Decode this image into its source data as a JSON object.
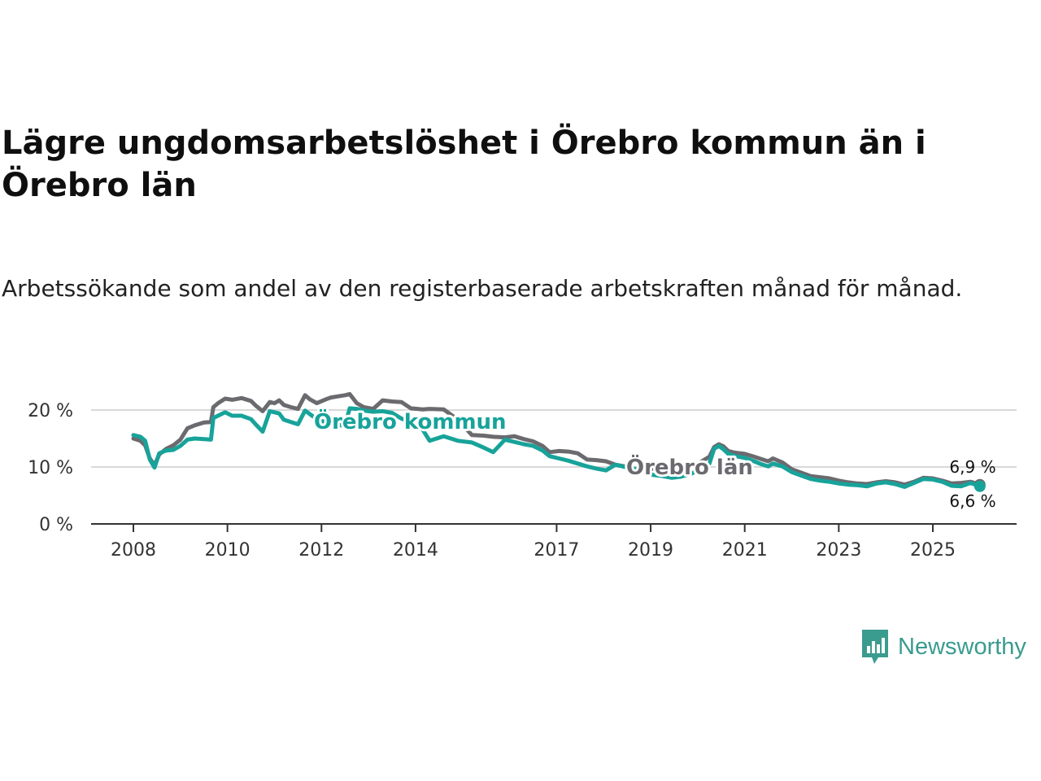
{
  "title": "Lägre ungdomsarbetslöshet i Örebro kommun än i Örebro län",
  "subtitle": "Arbetssökande som andel av den registerbaserade arbetskraften månad för månad.",
  "brand": {
    "name": "Newsworthy",
    "icon": "newsworthy-logo-icon",
    "color": "#3a9b8f"
  },
  "chart_data": {
    "type": "line",
    "title": "Lägre ungdomsarbetslöshet i Örebro kommun än i Örebro län",
    "xlabel": "",
    "ylabel": "",
    "xlim": [
      2008.0,
      2026.8
    ],
    "ylim": [
      0,
      20
    ],
    "grid": true,
    "y_ticks": [
      {
        "value": 0,
        "label": "0 %"
      },
      {
        "value": 10,
        "label": "10 %"
      },
      {
        "value": 20,
        "label": "20 %"
      }
    ],
    "x_ticks": [
      {
        "value": 2008,
        "label": "2008"
      },
      {
        "value": 2010,
        "label": "2010"
      },
      {
        "value": 2012,
        "label": "2012"
      },
      {
        "value": 2014,
        "label": "2014"
      },
      {
        "value": 2017,
        "label": "2017"
      },
      {
        "value": 2019,
        "label": "2019"
      },
      {
        "value": 2021,
        "label": "2021"
      },
      {
        "value": 2023,
        "label": "2023"
      },
      {
        "value": 2025,
        "label": "2025"
      }
    ],
    "series": [
      {
        "name": "Örebro län",
        "color": "#6b6a6f",
        "label": "Örebro län",
        "end_label": "6,9 %",
        "x": [
          2008.0,
          2008.15,
          2008.25,
          2008.35,
          2008.45,
          2008.55,
          2008.7,
          2008.85,
          2009.0,
          2009.15,
          2009.3,
          2009.5,
          2009.65,
          2009.7,
          2009.8,
          2009.95,
          2010.1,
          2010.3,
          2010.5,
          2010.6,
          2010.75,
          2010.9,
          2011.0,
          2011.1,
          2011.2,
          2011.35,
          2011.5,
          2011.65,
          2011.75,
          2011.9,
          2012.1,
          2012.2,
          2012.35,
          2012.5,
          2012.6,
          2012.75,
          2012.9,
          2013.1,
          2013.3,
          2013.5,
          2013.7,
          2013.9,
          2014.15,
          2014.3,
          2014.6,
          2014.9,
          2015.2,
          2015.45,
          2015.65,
          2015.9,
          2016.1,
          2016.3,
          2016.5,
          2016.7,
          2016.85,
          2017.05,
          2017.25,
          2017.45,
          2017.65,
          2017.85,
          2018.05,
          2018.25,
          2018.45,
          2018.65,
          2018.85,
          2019.05,
          2019.25,
          2019.45,
          2019.65,
          2019.85,
          2020.05,
          2020.25,
          2020.35,
          2020.45,
          2020.55,
          2020.65,
          2020.8,
          2021.0,
          2021.2,
          2021.35,
          2021.5,
          2021.6,
          2021.8,
          2022.0,
          2022.2,
          2022.4,
          2022.6,
          2022.8,
          2023.0,
          2023.2,
          2023.4,
          2023.6,
          2023.8,
          2024.0,
          2024.2,
          2024.4,
          2024.6,
          2024.8,
          2025.0,
          2025.2,
          2025.4,
          2025.6,
          2025.8,
          2026.0
        ],
        "values": [
          15.0,
          14.6,
          13.8,
          11.5,
          10.3,
          12.2,
          13.2,
          13.8,
          14.8,
          16.8,
          17.3,
          17.8,
          17.9,
          20.5,
          21.2,
          22.0,
          21.8,
          22.1,
          21.6,
          20.8,
          19.8,
          21.4,
          21.2,
          21.7,
          20.9,
          20.5,
          20.2,
          22.6,
          21.9,
          21.2,
          21.9,
          22.2,
          22.4,
          22.6,
          22.8,
          21.2,
          20.5,
          20.2,
          21.7,
          21.5,
          21.4,
          20.3,
          20.1,
          20.2,
          20.1,
          18.3,
          15.6,
          15.5,
          15.3,
          15.2,
          15.4,
          14.9,
          14.5,
          13.7,
          12.6,
          12.8,
          12.7,
          12.4,
          11.3,
          11.2,
          11.0,
          10.4,
          10.1,
          9.6,
          9.5,
          9.7,
          9.2,
          9.1,
          9.6,
          10.2,
          10.8,
          11.8,
          13.5,
          14.0,
          13.6,
          12.8,
          12.5,
          12.3,
          11.8,
          11.4,
          11.0,
          11.5,
          10.8,
          9.6,
          9.0,
          8.4,
          8.2,
          8.0,
          7.6,
          7.3,
          7.1,
          7.0,
          7.3,
          7.5,
          7.3,
          6.9,
          7.4,
          8.1,
          8.0,
          7.6,
          7.1,
          7.2,
          7.4,
          6.9
        ]
      },
      {
        "name": "Örebro kommun",
        "color": "#17a39a",
        "label": "Örebro kommun",
        "end_label": "6,6 %",
        "x": [
          2008.0,
          2008.15,
          2008.25,
          2008.35,
          2008.45,
          2008.55,
          2008.7,
          2008.85,
          2009.0,
          2009.15,
          2009.3,
          2009.5,
          2009.65,
          2009.7,
          2009.8,
          2009.95,
          2010.1,
          2010.3,
          2010.5,
          2010.6,
          2010.75,
          2010.9,
          2011.0,
          2011.1,
          2011.2,
          2011.35,
          2011.5,
          2011.65,
          2011.75,
          2011.9,
          2012.1,
          2012.2,
          2012.35,
          2012.5,
          2012.6,
          2012.75,
          2012.9,
          2013.1,
          2013.3,
          2013.5,
          2013.7,
          2013.9,
          2014.15,
          2014.3,
          2014.6,
          2014.9,
          2015.2,
          2015.45,
          2015.65,
          2015.9,
          2016.1,
          2016.3,
          2016.5,
          2016.7,
          2016.85,
          2017.05,
          2017.25,
          2017.45,
          2017.65,
          2017.85,
          2018.05,
          2018.25,
          2018.45,
          2018.65,
          2018.85,
          2019.05,
          2019.25,
          2019.45,
          2019.65,
          2019.85,
          2020.05,
          2020.25,
          2020.35,
          2020.45,
          2020.55,
          2020.65,
          2020.8,
          2021.0,
          2021.2,
          2021.35,
          2021.5,
          2021.6,
          2021.8,
          2022.0,
          2022.2,
          2022.4,
          2022.6,
          2022.8,
          2023.0,
          2023.2,
          2023.4,
          2023.6,
          2023.8,
          2024.0,
          2024.2,
          2024.4,
          2024.6,
          2024.8,
          2025.0,
          2025.2,
          2025.4,
          2025.6,
          2025.8,
          2026.0
        ],
        "values": [
          15.6,
          15.3,
          14.6,
          11.3,
          9.9,
          12.4,
          12.9,
          13.0,
          13.7,
          14.8,
          15.0,
          14.9,
          14.8,
          18.6,
          19.0,
          19.6,
          19.0,
          19.0,
          18.4,
          17.5,
          16.2,
          19.8,
          19.6,
          19.4,
          18.3,
          17.9,
          17.5,
          19.9,
          19.3,
          18.4,
          17.8,
          17.6,
          17.4,
          17.2,
          20.3,
          20.2,
          19.9,
          19.7,
          19.8,
          19.5,
          18.5,
          17.9,
          16.6,
          14.6,
          15.4,
          14.6,
          14.3,
          13.4,
          12.6,
          14.8,
          14.4,
          14.0,
          13.7,
          12.9,
          11.9,
          11.5,
          11.1,
          10.6,
          10.1,
          9.7,
          9.4,
          10.4,
          10.0,
          9.7,
          9.3,
          8.6,
          8.4,
          8.1,
          8.3,
          8.8,
          9.5,
          10.6,
          13.2,
          13.7,
          13.1,
          12.3,
          11.9,
          11.6,
          11.0,
          10.5,
          10.1,
          10.6,
          10.1,
          9.1,
          8.5,
          7.9,
          7.6,
          7.4,
          7.1,
          6.9,
          6.8,
          6.6,
          7.1,
          7.3,
          7.0,
          6.5,
          7.2,
          7.9,
          7.8,
          7.4,
          6.7,
          6.6,
          7.2,
          6.6
        ]
      }
    ]
  }
}
